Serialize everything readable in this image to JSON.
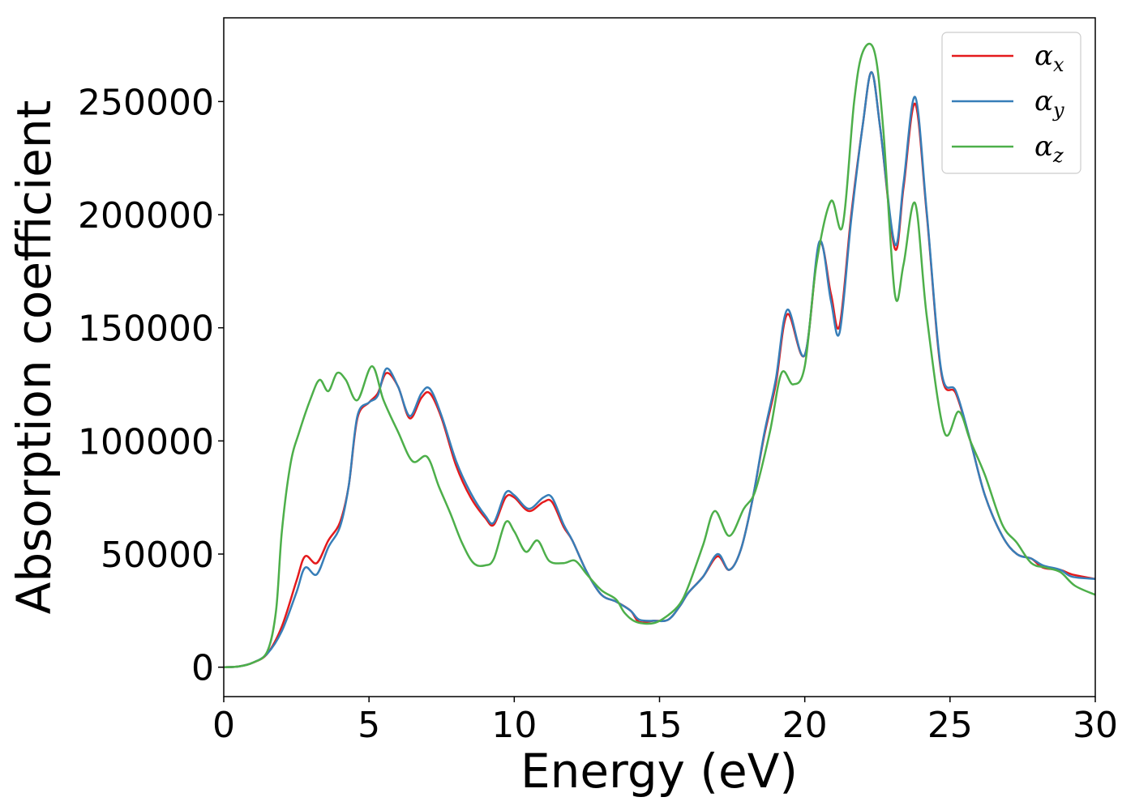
{
  "chart_data": {
    "type": "line",
    "xlabel": "Energy (eV)",
    "ylabel": "Absorption coefficient",
    "xlim": [
      0,
      30
    ],
    "ylim": [
      -13000,
      287000
    ],
    "xticks": [
      0,
      5,
      10,
      15,
      20,
      25,
      30
    ],
    "yticks": [
      0,
      50000,
      100000,
      150000,
      200000,
      250000
    ],
    "grid": false,
    "legend_position": "top-right",
    "series": [
      {
        "name": "α",
        "subscript": "x",
        "color": "#e41a1c",
        "points": [
          [
            0,
            0
          ],
          [
            0.5,
            300
          ],
          [
            1,
            2000
          ],
          [
            1.5,
            6000
          ],
          [
            2,
            18000
          ],
          [
            2.5,
            38000
          ],
          [
            2.8,
            49000
          ],
          [
            3.2,
            46000
          ],
          [
            3.6,
            56000
          ],
          [
            4,
            64000
          ],
          [
            4.3,
            80000
          ],
          [
            4.6,
            110000
          ],
          [
            5,
            117000
          ],
          [
            5.3,
            121000
          ],
          [
            5.6,
            130000
          ],
          [
            6,
            124000
          ],
          [
            6.4,
            110000
          ],
          [
            6.8,
            119000
          ],
          [
            7.1,
            121000
          ],
          [
            7.5,
            110000
          ],
          [
            8,
            89000
          ],
          [
            8.5,
            75000
          ],
          [
            9,
            66000
          ],
          [
            9.3,
            63000
          ],
          [
            9.7,
            75000
          ],
          [
            10,
            75000
          ],
          [
            10.5,
            69000
          ],
          [
            11,
            73000
          ],
          [
            11.3,
            73000
          ],
          [
            11.7,
            62000
          ],
          [
            12,
            56000
          ],
          [
            12.5,
            42000
          ],
          [
            13,
            32000
          ],
          [
            13.5,
            29000
          ],
          [
            14,
            25000
          ],
          [
            14.3,
            20000
          ],
          [
            14.8,
            20500
          ],
          [
            15.3,
            21000
          ],
          [
            15.7,
            27000
          ],
          [
            16,
            33000
          ],
          [
            16.5,
            40000
          ],
          [
            17,
            49000
          ],
          [
            17.4,
            43000
          ],
          [
            17.8,
            52000
          ],
          [
            18.2,
            74000
          ],
          [
            18.6,
            102000
          ],
          [
            19,
            125000
          ],
          [
            19.4,
            156000
          ],
          [
            20,
            138000
          ],
          [
            20.5,
            187000
          ],
          [
            20.9,
            165000
          ],
          [
            21.2,
            151000
          ],
          [
            21.6,
            200000
          ],
          [
            22,
            240000
          ],
          [
            22.3,
            263000
          ],
          [
            22.6,
            238000
          ],
          [
            23.1,
            185000
          ],
          [
            23.4,
            212000
          ],
          [
            23.8,
            249000
          ],
          [
            24.2,
            200000
          ],
          [
            24.7,
            130000
          ],
          [
            25.2,
            121000
          ],
          [
            25.7,
            100000
          ],
          [
            26.2,
            76000
          ],
          [
            26.8,
            58000
          ],
          [
            27.3,
            50000
          ],
          [
            27.8,
            48000
          ],
          [
            28.2,
            44000
          ],
          [
            28.8,
            43000
          ],
          [
            29.2,
            41000
          ],
          [
            30,
            39000
          ]
        ]
      },
      {
        "name": "α",
        "subscript": "y",
        "color": "#377eb8",
        "points": [
          [
            0,
            0
          ],
          [
            0.5,
            300
          ],
          [
            1,
            2000
          ],
          [
            1.5,
            6000
          ],
          [
            2,
            16000
          ],
          [
            2.5,
            33000
          ],
          [
            2.8,
            44000
          ],
          [
            3.2,
            41000
          ],
          [
            3.6,
            53000
          ],
          [
            4,
            62000
          ],
          [
            4.3,
            80000
          ],
          [
            4.6,
            111000
          ],
          [
            5,
            117000
          ],
          [
            5.3,
            120000
          ],
          [
            5.6,
            132000
          ],
          [
            6,
            124000
          ],
          [
            6.4,
            111000
          ],
          [
            6.8,
            121000
          ],
          [
            7.1,
            123000
          ],
          [
            7.5,
            111000
          ],
          [
            8,
            91000
          ],
          [
            8.5,
            77000
          ],
          [
            9,
            67000
          ],
          [
            9.3,
            64000
          ],
          [
            9.7,
            77000
          ],
          [
            10,
            76000
          ],
          [
            10.5,
            70000
          ],
          [
            11,
            75000
          ],
          [
            11.3,
            75000
          ],
          [
            11.7,
            63000
          ],
          [
            12,
            56000
          ],
          [
            12.5,
            42000
          ],
          [
            13,
            32000
          ],
          [
            13.5,
            29000
          ],
          [
            14,
            25000
          ],
          [
            14.3,
            21000
          ],
          [
            14.8,
            20500
          ],
          [
            15.3,
            21000
          ],
          [
            15.7,
            27000
          ],
          [
            16,
            33000
          ],
          [
            16.5,
            40000
          ],
          [
            17,
            50000
          ],
          [
            17.4,
            43000
          ],
          [
            17.8,
            52000
          ],
          [
            18.2,
            74000
          ],
          [
            18.6,
            103000
          ],
          [
            19,
            127000
          ],
          [
            19.4,
            158000
          ],
          [
            20,
            138000
          ],
          [
            20.5,
            188000
          ],
          [
            20.9,
            162000
          ],
          [
            21.2,
            148000
          ],
          [
            21.6,
            198000
          ],
          [
            22,
            240000
          ],
          [
            22.3,
            263000
          ],
          [
            22.6,
            238000
          ],
          [
            23.1,
            187000
          ],
          [
            23.4,
            214000
          ],
          [
            23.8,
            252000
          ],
          [
            24.2,
            201000
          ],
          [
            24.7,
            131000
          ],
          [
            25.2,
            122000
          ],
          [
            25.7,
            100000
          ],
          [
            26.2,
            76000
          ],
          [
            26.8,
            58000
          ],
          [
            27.3,
            50000
          ],
          [
            27.8,
            48000
          ],
          [
            28.2,
            45000
          ],
          [
            28.8,
            43000
          ],
          [
            29.2,
            40000
          ],
          [
            30,
            39000
          ]
        ]
      },
      {
        "name": "α",
        "subscript": "z",
        "color": "#4daf4a",
        "points": [
          [
            0,
            0
          ],
          [
            0.5,
            300
          ],
          [
            1,
            2000
          ],
          [
            1.5,
            7000
          ],
          [
            1.8,
            25000
          ],
          [
            2,
            60000
          ],
          [
            2.3,
            90000
          ],
          [
            2.6,
            104000
          ],
          [
            3,
            119000
          ],
          [
            3.3,
            127000
          ],
          [
            3.6,
            122000
          ],
          [
            3.9,
            130000
          ],
          [
            4.2,
            127000
          ],
          [
            4.6,
            118000
          ],
          [
            5.1,
            133000
          ],
          [
            5.5,
            118000
          ],
          [
            6,
            104000
          ],
          [
            6.5,
            91000
          ],
          [
            7,
            93000
          ],
          [
            7.4,
            80000
          ],
          [
            7.8,
            68000
          ],
          [
            8.2,
            55000
          ],
          [
            8.6,
            46000
          ],
          [
            9,
            45000
          ],
          [
            9.3,
            48000
          ],
          [
            9.7,
            64000
          ],
          [
            10,
            60000
          ],
          [
            10.4,
            51000
          ],
          [
            10.8,
            56000
          ],
          [
            11.2,
            47000
          ],
          [
            11.7,
            46000
          ],
          [
            12.1,
            47000
          ],
          [
            12.5,
            41000
          ],
          [
            13,
            34000
          ],
          [
            13.5,
            30000
          ],
          [
            13.8,
            24000
          ],
          [
            14.2,
            20000
          ],
          [
            14.8,
            19500
          ],
          [
            15.3,
            23000
          ],
          [
            15.7,
            28000
          ],
          [
            16,
            36000
          ],
          [
            16.5,
            54000
          ],
          [
            16.9,
            69000
          ],
          [
            17.4,
            58000
          ],
          [
            17.9,
            70000
          ],
          [
            18.3,
            78000
          ],
          [
            18.8,
            104000
          ],
          [
            19.2,
            130000
          ],
          [
            19.6,
            125000
          ],
          [
            20,
            133000
          ],
          [
            20.4,
            178000
          ],
          [
            20.9,
            206000
          ],
          [
            21.3,
            195000
          ],
          [
            21.7,
            250000
          ],
          [
            22,
            272000
          ],
          [
            22.4,
            272000
          ],
          [
            22.7,
            238000
          ],
          [
            23.1,
            165000
          ],
          [
            23.4,
            178000
          ],
          [
            23.8,
            205000
          ],
          [
            24.2,
            155000
          ],
          [
            24.8,
            104000
          ],
          [
            25.3,
            113000
          ],
          [
            25.7,
            100000
          ],
          [
            26.2,
            85000
          ],
          [
            26.8,
            63000
          ],
          [
            27.3,
            55000
          ],
          [
            27.8,
            46000
          ],
          [
            28.3,
            44000
          ],
          [
            28.8,
            42000
          ],
          [
            29.3,
            36000
          ],
          [
            30,
            32000
          ]
        ]
      }
    ]
  }
}
